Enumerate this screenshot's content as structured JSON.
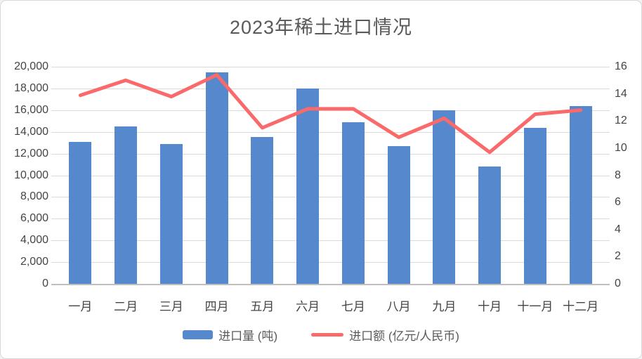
{
  "title": "2023年稀土进口情况",
  "colors": {
    "bar": "#5588CC",
    "line": "#FA6A6A",
    "gridline": "#DADADA",
    "axis_line": "#BFBFBF",
    "title_text": "#595959",
    "axis_text": "#444444",
    "legend_text": "#595959",
    "background": "#FFFFFF",
    "border": "#D8D8D8"
  },
  "legend": [
    {
      "label": "进口量 (吨)",
      "swatch": "bar-swatch"
    },
    {
      "label": "进口额 (亿元/人民币)",
      "swatch": "line-swatch"
    }
  ],
  "chart_data": {
    "type": "bar",
    "subtype": "combo-bar-line",
    "title": "2023年稀土进口情况",
    "categories": [
      "一月",
      "二月",
      "三月",
      "四月",
      "五月",
      "六月",
      "七月",
      "八月",
      "九月",
      "十月",
      "十一月",
      "十二月"
    ],
    "series": [
      {
        "name": "进口量 (吨)",
        "type": "bar",
        "axis": "left",
        "values": [
          13100,
          14500,
          12900,
          19500,
          13500,
          18000,
          14900,
          12700,
          16000,
          10800,
          14400,
          16400
        ]
      },
      {
        "name": "进口额 (亿元/人民币)",
        "type": "line",
        "axis": "right",
        "values": [
          13.9,
          15.0,
          13.8,
          15.4,
          11.5,
          12.9,
          12.9,
          10.8,
          12.2,
          9.7,
          12.5,
          12.8
        ]
      }
    ],
    "left_axis": {
      "min": 0,
      "max": 20000,
      "step": 2000,
      "tick_labels_top_to_bottom": [
        "20,000",
        "18,000",
        "16,000",
        "14,000",
        "12,000",
        "10,000",
        "8,000",
        "6,000",
        "4,000",
        "2,000",
        "0"
      ]
    },
    "right_axis": {
      "min": 0,
      "max": 16,
      "step": 2,
      "tick_labels_top_to_bottom": [
        "16",
        "14",
        "12",
        "10",
        "8",
        "6",
        "4",
        "2",
        "0"
      ]
    },
    "grid": true,
    "legend_position": "bottom"
  }
}
